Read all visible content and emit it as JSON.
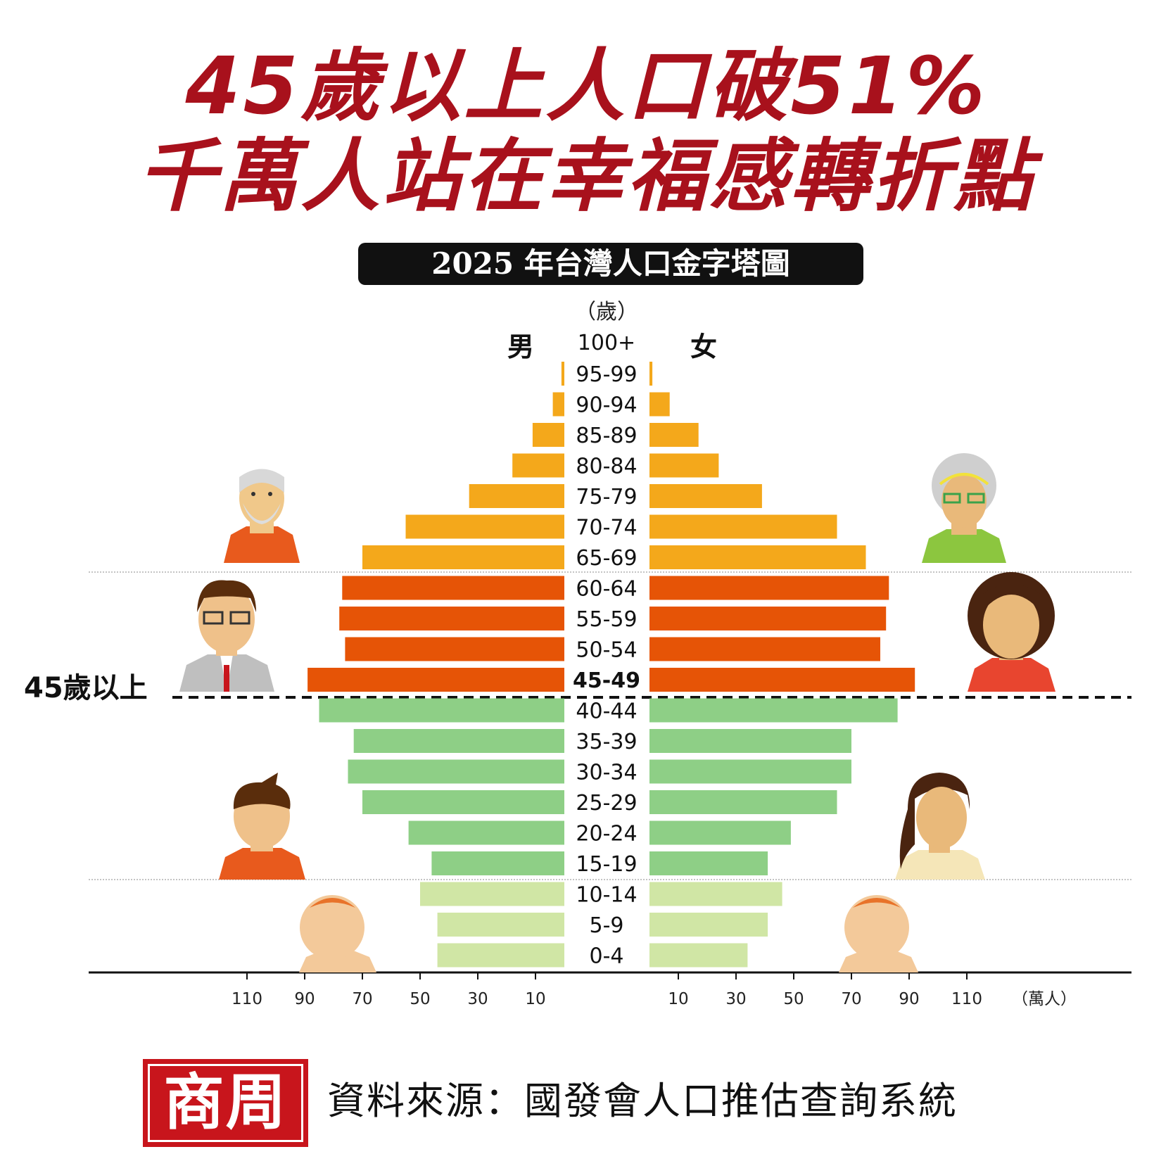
{
  "headline": {
    "line1": "45歲以上人口破51%",
    "line2": "千萬人站在幸福感轉折點"
  },
  "subtitle": "2025 年台灣人口金字塔圖",
  "labels": {
    "unit_age": "（歲）",
    "male": "男",
    "female": "女",
    "threshold": "45歲以上",
    "unit_pop": "（萬人）"
  },
  "colors": {
    "senior": "#f4a81b",
    "middle": "#e65406",
    "young": "#8ecf86",
    "child": "#d0e6a5",
    "headline": "#a8111c",
    "brand": "#c8151c"
  },
  "chart_data": {
    "type": "bar",
    "orientation": "horizontal-pyramid",
    "title": "2025 年台灣人口金字塔圖",
    "ylabel": "（歲）",
    "xlabel": "（萬人）",
    "categories": [
      "100+",
      "95-99",
      "90-94",
      "85-89",
      "80-84",
      "75-79",
      "70-74",
      "65-69",
      "60-64",
      "55-59",
      "50-54",
      "45-49",
      "40-44",
      "35-39",
      "30-34",
      "25-29",
      "20-24",
      "15-19",
      "10-14",
      "5-9",
      "0-4"
    ],
    "group": [
      "senior",
      "senior",
      "senior",
      "senior",
      "senior",
      "senior",
      "senior",
      "senior",
      "middle",
      "middle",
      "middle",
      "middle",
      "young",
      "young",
      "young",
      "young",
      "young",
      "young",
      "child",
      "child",
      "child"
    ],
    "series": [
      {
        "name": "男",
        "values": [
          0,
          1,
          4,
          11,
          18,
          33,
          55,
          70,
          77,
          78,
          76,
          89,
          85,
          73,
          75,
          70,
          54,
          46,
          50,
          44,
          44
        ]
      },
      {
        "name": "女",
        "values": [
          0,
          1,
          7,
          17,
          24,
          39,
          65,
          75,
          83,
          82,
          80,
          92,
          86,
          70,
          70,
          65,
          49,
          41,
          46,
          41,
          34
        ]
      }
    ],
    "xticks": [
      110,
      90,
      70,
      50,
      30,
      10
    ],
    "xlim": [
      0,
      120
    ],
    "highlight_category": "45-49",
    "threshold_label": "45歲以上"
  },
  "source": {
    "logo_text": "商周",
    "text": "資料來源：國發會人口推估查詢系統"
  }
}
